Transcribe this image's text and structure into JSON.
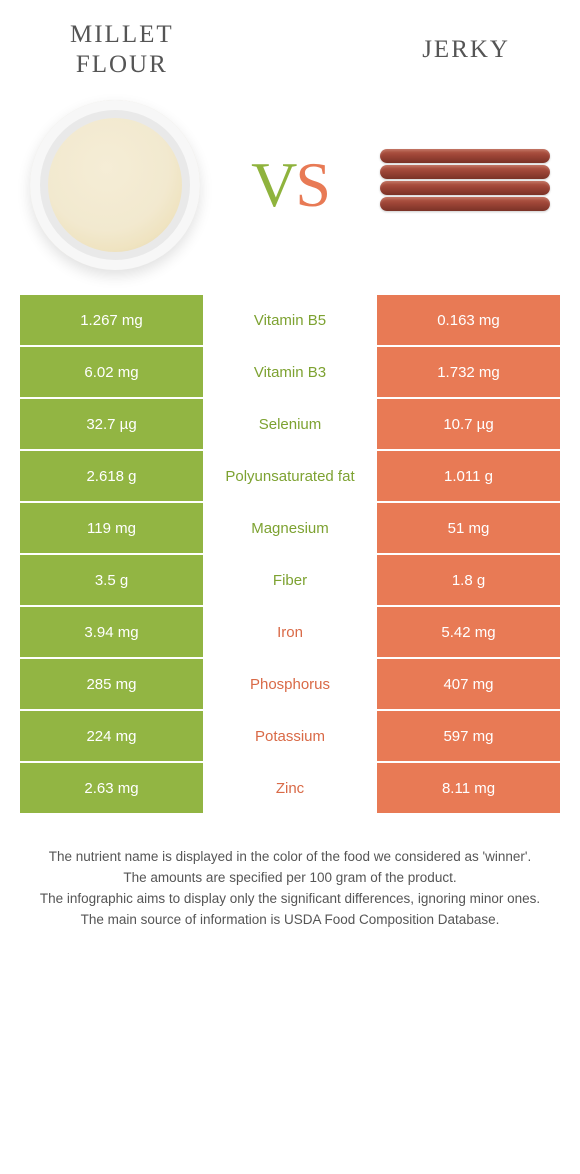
{
  "colors": {
    "green": "#92b543",
    "orange": "#e87a55",
    "green_text": "#7da231",
    "orange_text": "#d96a47",
    "bg": "#ffffff"
  },
  "typography": {
    "title_fontsize": 25,
    "vs_fontsize": 64,
    "cell_fontsize": 15,
    "footer_fontsize": 13.5
  },
  "header": {
    "left_line1": "MILLET",
    "left_line2": "FLOUR",
    "right": "JERKY"
  },
  "vs": {
    "v": "V",
    "s": "S"
  },
  "rows": [
    {
      "nutrient": "Vitamin B5",
      "left": "1.267 mg",
      "right": "0.163 mg",
      "winner": "green"
    },
    {
      "nutrient": "Vitamin B3",
      "left": "6.02 mg",
      "right": "1.732 mg",
      "winner": "green"
    },
    {
      "nutrient": "Selenium",
      "left": "32.7 µg",
      "right": "10.7 µg",
      "winner": "green"
    },
    {
      "nutrient": "Polyunsaturated fat",
      "left": "2.618 g",
      "right": "1.011 g",
      "winner": "green"
    },
    {
      "nutrient": "Magnesium",
      "left": "119 mg",
      "right": "51 mg",
      "winner": "green"
    },
    {
      "nutrient": "Fiber",
      "left": "3.5 g",
      "right": "1.8 g",
      "winner": "green"
    },
    {
      "nutrient": "Iron",
      "left": "3.94 mg",
      "right": "5.42 mg",
      "winner": "orange"
    },
    {
      "nutrient": "Phosphorus",
      "left": "285 mg",
      "right": "407 mg",
      "winner": "orange"
    },
    {
      "nutrient": "Potassium",
      "left": "224 mg",
      "right": "597 mg",
      "winner": "orange"
    },
    {
      "nutrient": "Zinc",
      "left": "2.63 mg",
      "right": "8.11 mg",
      "winner": "orange"
    }
  ],
  "footer": {
    "l1": "The nutrient name is displayed in the color of the food we considered as 'winner'.",
    "l2": "The amounts are specified per 100 gram of the product.",
    "l3": "The infographic aims to display only the significant differences, ignoring minor ones.",
    "l4": "The main source of information is USDA Food Composition Database."
  }
}
